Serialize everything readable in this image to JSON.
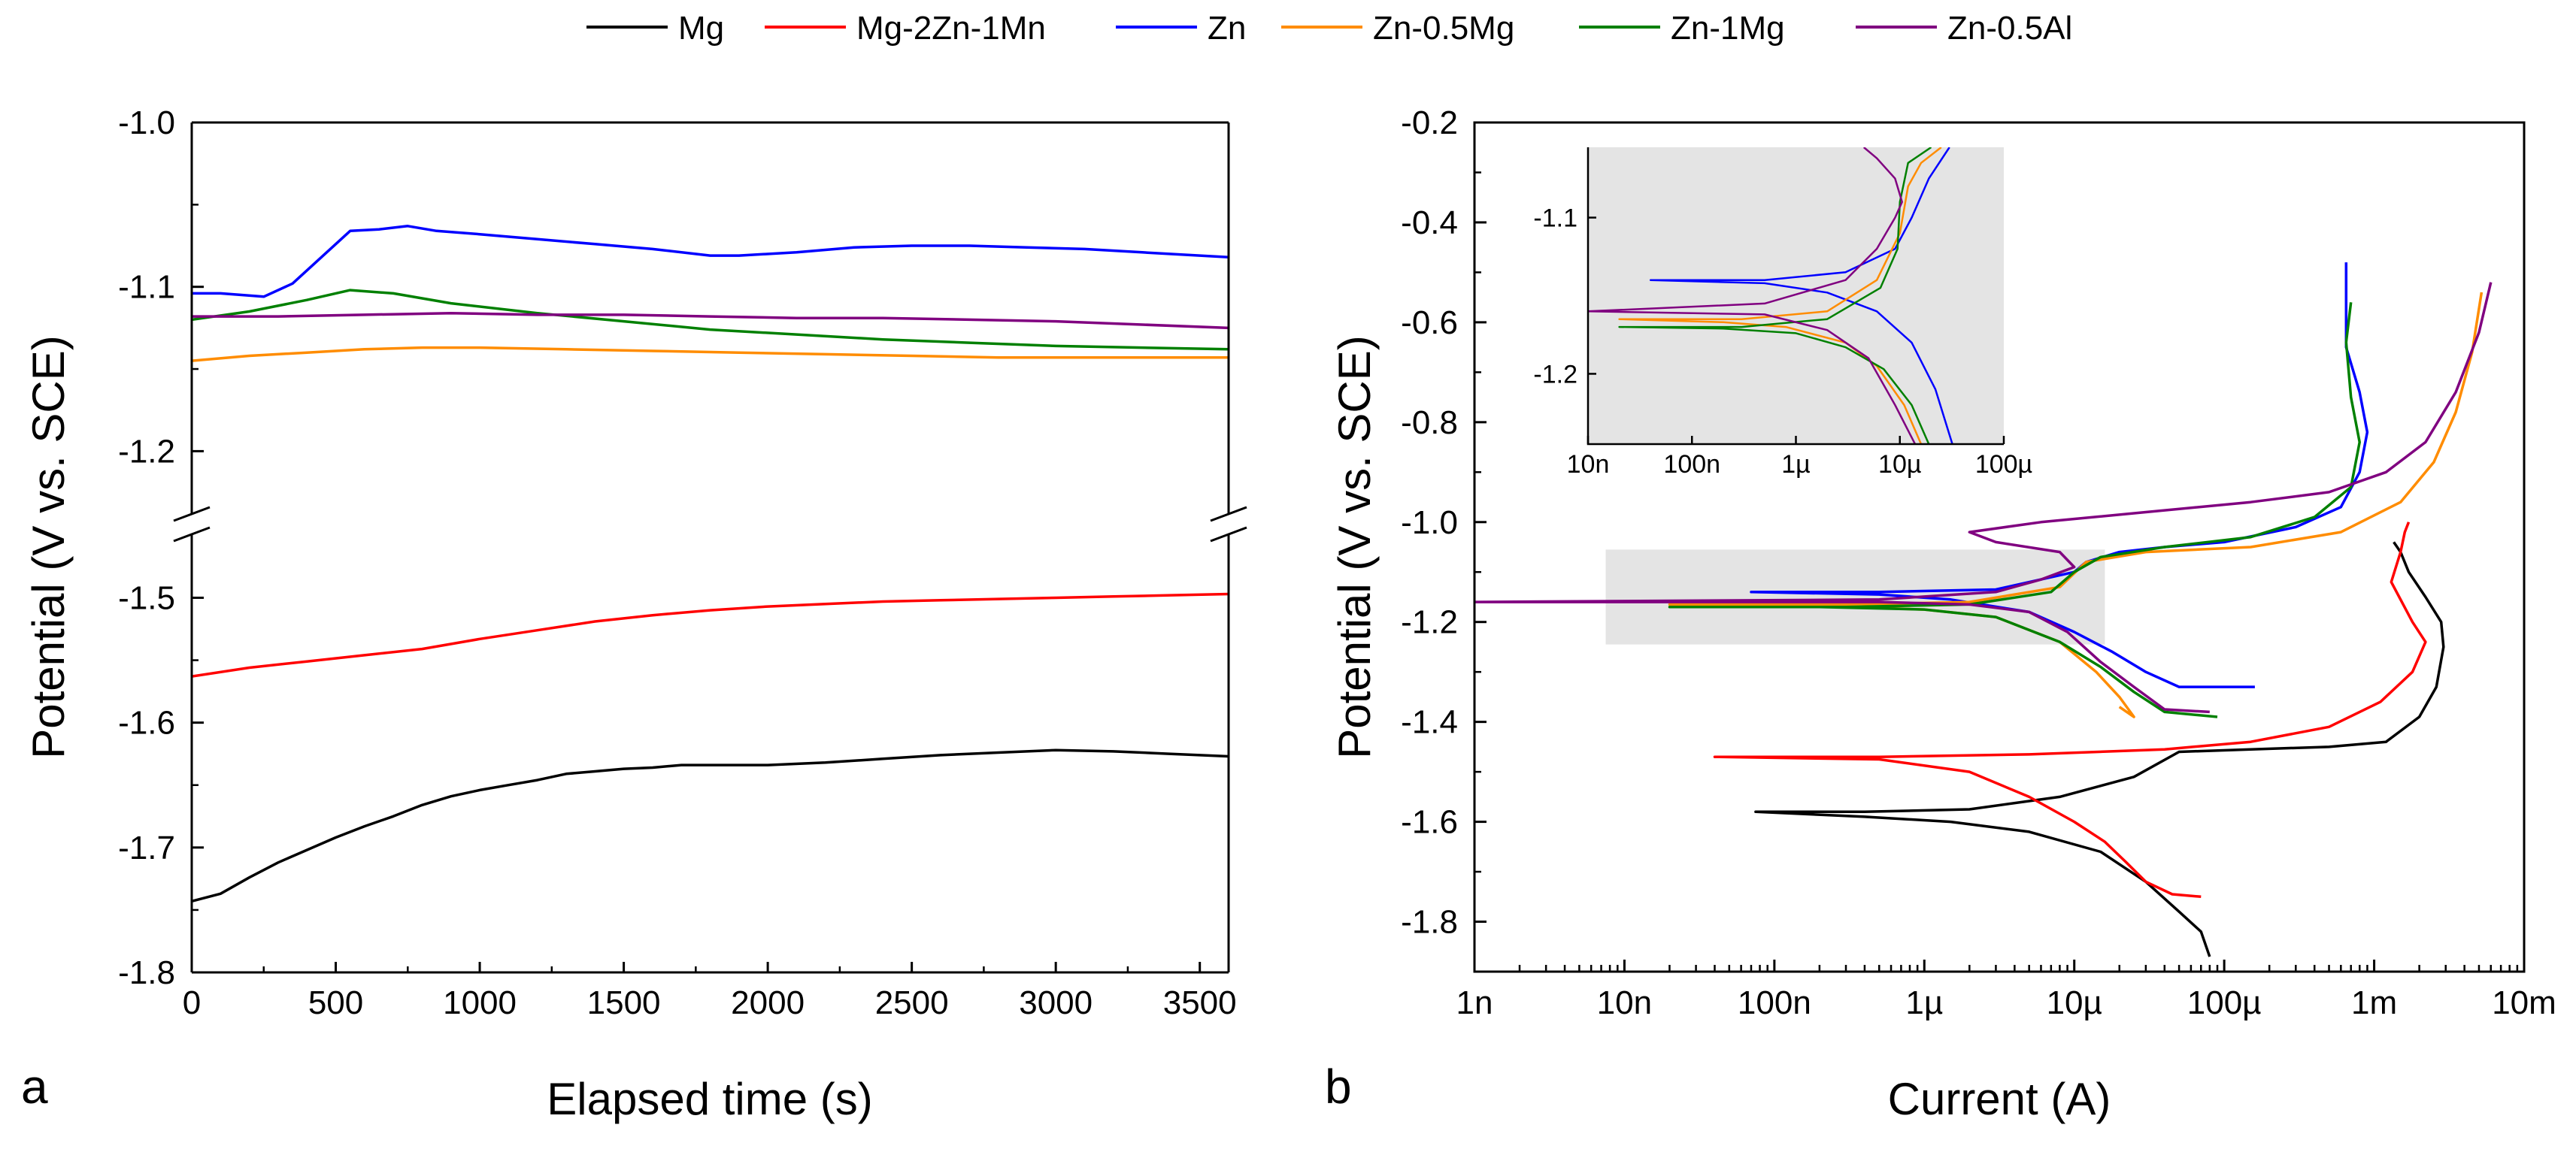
{
  "legend": [
    {
      "name": "Mg",
      "color": "#000000"
    },
    {
      "name": "Mg-2Zn-1Mn",
      "color": "#ff0000"
    },
    {
      "name": "Zn",
      "color": "#0000ff"
    },
    {
      "name": "Zn-0.5Mg",
      "color": "#ff8c00"
    },
    {
      "name": "Zn-1Mg",
      "color": "#008000"
    },
    {
      "name": "Zn-0.5Al",
      "color": "#800080"
    }
  ],
  "chart_data": [
    {
      "type": "line",
      "panel_label": "a",
      "xlabel": "Elapsed time (s)",
      "ylabel": "Potential (V vs. SCE)",
      "xlim": [
        0,
        3600
      ],
      "xticks": [
        0,
        500,
        1000,
        1500,
        2000,
        2500,
        3000,
        3500
      ],
      "xtick_labels": [
        "0",
        "500",
        "1000",
        "1500",
        "2000",
        "2500",
        "3000",
        "3500"
      ],
      "ylim_upper": [
        -1.23,
        -1.0
      ],
      "ylim_lower": [
        -1.8,
        -1.46
      ],
      "yticks_upper": [
        -1.0,
        -1.1,
        -1.2
      ],
      "ytick_labels_upper": [
        "-1.0",
        "-1.1",
        "-1.2"
      ],
      "yticks_lower": [
        -1.5,
        -1.6,
        -1.7,
        -1.8
      ],
      "ytick_labels_lower": [
        "-1.5",
        "-1.6",
        "-1.7",
        "-1.8"
      ],
      "axis_break": true,
      "series": [
        {
          "name": "Zn",
          "color": "#0000ff",
          "x": [
            0,
            100,
            250,
            350,
            450,
            550,
            650,
            750,
            850,
            1000,
            1200,
            1400,
            1600,
            1800,
            1900,
            2100,
            2300,
            2500,
            2700,
            2900,
            3100,
            3300,
            3600
          ],
          "y": [
            -1.104,
            -1.104,
            -1.106,
            -1.098,
            -1.082,
            -1.066,
            -1.065,
            -1.063,
            -1.066,
            -1.068,
            -1.071,
            -1.074,
            -1.077,
            -1.081,
            -1.081,
            -1.079,
            -1.076,
            -1.075,
            -1.075,
            -1.076,
            -1.077,
            -1.079,
            -1.082
          ]
        },
        {
          "name": "Zn-1Mg",
          "color": "#008000",
          "x": [
            0,
            200,
            400,
            550,
            700,
            900,
            1200,
            1500,
            1800,
            2100,
            2400,
            2700,
            3000,
            3300,
            3600
          ],
          "y": [
            -1.12,
            -1.115,
            -1.108,
            -1.102,
            -1.104,
            -1.11,
            -1.116,
            -1.121,
            -1.126,
            -1.129,
            -1.132,
            -1.134,
            -1.136,
            -1.137,
            -1.138
          ]
        },
        {
          "name": "Zn-0.5Al",
          "color": "#800080",
          "x": [
            0,
            300,
            600,
            900,
            1200,
            1500,
            1800,
            2100,
            2400,
            2700,
            3000,
            3300,
            3600
          ],
          "y": [
            -1.118,
            -1.118,
            -1.117,
            -1.116,
            -1.117,
            -1.117,
            -1.118,
            -1.119,
            -1.119,
            -1.12,
            -1.121,
            -1.123,
            -1.125
          ]
        },
        {
          "name": "Zn-0.5Mg",
          "color": "#ff8c00",
          "x": [
            0,
            200,
            400,
            600,
            800,
            1000,
            1300,
            1600,
            1900,
            2200,
            2500,
            2800,
            3100,
            3400,
            3600
          ],
          "y": [
            -1.145,
            -1.142,
            -1.14,
            -1.138,
            -1.137,
            -1.137,
            -1.138,
            -1.139,
            -1.14,
            -1.141,
            -1.142,
            -1.143,
            -1.143,
            -1.143,
            -1.143
          ]
        },
        {
          "name": "Mg-2Zn-1Mn",
          "color": "#ff0000",
          "x": [
            0,
            200,
            400,
            600,
            800,
            1000,
            1200,
            1400,
            1600,
            1800,
            2000,
            2200,
            2400,
            2600,
            2800,
            3000,
            3200,
            3400,
            3600
          ],
          "y": [
            -1.563,
            -1.556,
            -1.551,
            -1.546,
            -1.541,
            -1.533,
            -1.526,
            -1.519,
            -1.514,
            -1.51,
            -1.507,
            -1.505,
            -1.503,
            -1.502,
            -1.501,
            -1.5,
            -1.499,
            -1.498,
            -1.497
          ]
        },
        {
          "name": "Mg",
          "color": "#000000",
          "x": [
            0,
            100,
            200,
            300,
            400,
            500,
            600,
            700,
            800,
            900,
            1000,
            1100,
            1200,
            1300,
            1400,
            1500,
            1600,
            1700,
            1800,
            2000,
            2200,
            2400,
            2600,
            2800,
            3000,
            3200,
            3400,
            3600
          ],
          "y": [
            -1.743,
            -1.737,
            -1.724,
            -1.712,
            -1.702,
            -1.692,
            -1.683,
            -1.675,
            -1.666,
            -1.659,
            -1.654,
            -1.65,
            -1.646,
            -1.641,
            -1.639,
            -1.637,
            -1.636,
            -1.634,
            -1.634,
            -1.634,
            -1.632,
            -1.629,
            -1.626,
            -1.624,
            -1.622,
            -1.623,
            -1.625,
            -1.627
          ]
        }
      ]
    },
    {
      "type": "line",
      "panel_label": "b",
      "xlabel": "Current (A)",
      "ylabel": "Potential (V vs. SCE)",
      "xscale": "log",
      "xlim": [
        1e-09,
        0.01
      ],
      "xticks": [
        1e-09,
        1e-08,
        1e-07,
        1e-06,
        1e-05,
        0.0001,
        0.001,
        0.01
      ],
      "xtick_labels": [
        "1n",
        "10n",
        "100n",
        "1µ",
        "10µ",
        "100µ",
        "1m",
        "10m"
      ],
      "ylim": [
        -1.9,
        -0.2
      ],
      "yticks": [
        -0.2,
        -0.4,
        -0.6,
        -0.8,
        -1.0,
        -1.2,
        -1.4,
        -1.6,
        -1.8
      ],
      "ytick_labels": [
        "-0.2",
        "-0.4",
        "-0.6",
        "-0.8",
        "-1.0",
        "-1.2",
        "-1.4",
        "-1.6",
        "-1.8"
      ],
      "highlight_region": {
        "x": [
          7.5e-09,
          1.6e-05
        ],
        "y": [
          -1.245,
          -1.055
        ]
      },
      "series": [
        {
          "name": "Mg",
          "color": "#000000",
          "x": [
            8e-05,
            7e-05,
            5e-05,
            3e-05,
            1.5e-05,
            5e-06,
            1.5e-06,
            4e-07,
            7.5e-08,
            4e-07,
            2e-06,
            8e-06,
            2.5e-05,
            5e-05,
            0.00015,
            0.0005,
            0.0012,
            0.002,
            0.0026,
            0.0029,
            0.0028,
            0.0022,
            0.0017,
            0.0015,
            0.00135
          ],
          "y": [
            -1.87,
            -1.82,
            -1.78,
            -1.72,
            -1.66,
            -1.62,
            -1.6,
            -1.59,
            -1.58,
            -1.58,
            -1.575,
            -1.55,
            -1.51,
            -1.46,
            -1.455,
            -1.45,
            -1.44,
            -1.39,
            -1.33,
            -1.25,
            -1.2,
            -1.15,
            -1.1,
            -1.06,
            -1.04
          ]
        },
        {
          "name": "Mg-2Zn-1Mn",
          "color": "#ff0000",
          "x": [
            7e-05,
            4.5e-05,
            3e-05,
            2.2e-05,
            1.6e-05,
            1e-05,
            5e-06,
            2e-06,
            5e-07,
            4e-08,
            5e-07,
            5e-06,
            4e-05,
            0.00015,
            0.0005,
            0.0011,
            0.0018,
            0.0022,
            0.0018,
            0.0013,
            0.0015,
            0.0016,
            0.0017
          ],
          "y": [
            -1.75,
            -1.745,
            -1.72,
            -1.68,
            -1.64,
            -1.6,
            -1.55,
            -1.5,
            -1.475,
            -1.47,
            -1.47,
            -1.465,
            -1.455,
            -1.44,
            -1.41,
            -1.36,
            -1.3,
            -1.24,
            -1.2,
            -1.12,
            -1.06,
            -1.02,
            -1.0
          ]
        },
        {
          "name": "Zn",
          "color": "#0000ff",
          "x": [
            0.00016,
            5e-05,
            3e-05,
            1.8e-05,
            1e-05,
            5e-06,
            1.5e-06,
            5e-07,
            7e-08,
            5e-07,
            3e-06,
            1e-05,
            1.2e-05,
            2e-05,
            4e-05,
            0.0001,
            0.0003,
            0.0006,
            0.0008,
            0.0009,
            0.0008,
            0.00065,
            0.00065
          ],
          "y": [
            -1.33,
            -1.33,
            -1.3,
            -1.26,
            -1.22,
            -1.18,
            -1.155,
            -1.145,
            -1.14,
            -1.14,
            -1.135,
            -1.1,
            -1.08,
            -1.06,
            -1.05,
            -1.04,
            -1.01,
            -0.97,
            -0.9,
            -0.82,
            -0.74,
            -0.65,
            -0.48
          ]
        },
        {
          "name": "Zn-0.5Mg",
          "color": "#ff8c00",
          "x": [
            2e-05,
            2.5e-05,
            2e-05,
            1.4e-05,
            8e-06,
            3e-06,
            1e-06,
            2e-07,
            2e-08,
            3e-07,
            2e-06,
            8e-06,
            1.2e-05,
            3e-05,
            0.00015,
            0.0006,
            0.0015,
            0.0025,
            0.0035,
            0.0045,
            0.0052
          ],
          "y": [
            -1.37,
            -1.39,
            -1.35,
            -1.3,
            -1.24,
            -1.19,
            -1.175,
            -1.168,
            -1.165,
            -1.165,
            -1.16,
            -1.13,
            -1.08,
            -1.06,
            -1.05,
            -1.02,
            -0.96,
            -0.88,
            -0.78,
            -0.66,
            -0.54
          ]
        },
        {
          "name": "Zn-1Mg",
          "color": "#008000",
          "x": [
            9e-05,
            4e-05,
            2.5e-05,
            1.5e-05,
            8e-06,
            3e-06,
            1e-06,
            2e-07,
            2e-08,
            3e-07,
            2e-06,
            7e-06,
            1e-05,
            1.5e-05,
            4e-05,
            0.00015,
            0.0004,
            0.0007,
            0.0008,
            0.0007,
            0.00065,
            0.0007
          ],
          "y": [
            -1.39,
            -1.38,
            -1.34,
            -1.29,
            -1.24,
            -1.19,
            -1.175,
            -1.17,
            -1.17,
            -1.17,
            -1.165,
            -1.14,
            -1.1,
            -1.07,
            -1.05,
            -1.03,
            -0.99,
            -0.93,
            -0.84,
            -0.75,
            -0.64,
            -0.56
          ]
        },
        {
          "name": "Zn-0.5Al",
          "color": "#800080",
          "x": [
            8e-05,
            4e-05,
            2.5e-05,
            1.5e-05,
            9e-06,
            5e-06,
            2e-06,
            5e-07,
            1e-09,
            5e-07,
            3e-06,
            6e-06,
            1e-05,
            8e-06,
            3e-06,
            2e-06,
            6e-06,
            3e-05,
            0.00015,
            0.0005,
            0.0012,
            0.0022,
            0.0035,
            0.005,
            0.006
          ],
          "y": [
            -1.38,
            -1.375,
            -1.33,
            -1.28,
            -1.22,
            -1.18,
            -1.165,
            -1.16,
            -1.16,
            -1.155,
            -1.14,
            -1.115,
            -1.09,
            -1.06,
            -1.04,
            -1.02,
            -1.0,
            -0.98,
            -0.96,
            -0.94,
            -0.9,
            -0.84,
            -0.74,
            -0.62,
            -0.52
          ]
        }
      ],
      "inset": {
        "xscale": "log",
        "xlim": [
          1e-08,
          0.0001
        ],
        "ylim": [
          -1.245,
          -1.055
        ],
        "xticks": [
          1e-08,
          1e-07,
          1e-06,
          1e-05,
          0.0001
        ],
        "xtick_labels": [
          "10n",
          "100n",
          "1µ",
          "10µ",
          "100µ"
        ],
        "yticks": [
          -1.1,
          -1.2
        ],
        "ytick_labels": [
          "-1.1",
          "-1.2"
        ],
        "series": [
          {
            "name": "Zn",
            "color": "#0000ff",
            "x": [
              3.2e-05,
              2.2e-05,
              1.3e-05,
              6e-06,
              2e-06,
              5e-07,
              4e-08,
              5e-07,
              3e-06,
              9e-06,
              1.3e-05,
              1.9e-05,
              3e-05
            ],
            "y": [
              -1.245,
              -1.21,
              -1.18,
              -1.16,
              -1.148,
              -1.142,
              -1.14,
              -1.14,
              -1.135,
              -1.12,
              -1.1,
              -1.075,
              -1.055
            ]
          },
          {
            "name": "Zn-0.5Mg",
            "color": "#ff8c00",
            "x": [
              1.6e-05,
              1.1e-05,
              6e-06,
              3e-06,
              8e-07,
              2e-07,
              2e-08,
              3e-07,
              2e-06,
              6e-06,
              1e-05,
              1.2e-05,
              1.6e-05,
              2.5e-05
            ],
            "y": [
              -1.245,
              -1.22,
              -1.195,
              -1.18,
              -1.17,
              -1.167,
              -1.165,
              -1.165,
              -1.16,
              -1.14,
              -1.11,
              -1.08,
              -1.065,
              -1.055
            ]
          },
          {
            "name": "Zn-1Mg",
            "color": "#008000",
            "x": [
              1.9e-05,
              1.3e-05,
              7e-06,
              3e-06,
              1e-06,
              2e-07,
              2e-08,
              3e-07,
              2e-06,
              6.5e-06,
              9.5e-06,
              1e-05,
              1.2e-05,
              2e-05
            ],
            "y": [
              -1.245,
              -1.22,
              -1.197,
              -1.183,
              -1.174,
              -1.171,
              -1.17,
              -1.17,
              -1.165,
              -1.145,
              -1.12,
              -1.09,
              -1.065,
              -1.055
            ]
          },
          {
            "name": "Zn-0.5Al",
            "color": "#800080",
            "x": [
              1.4e-05,
              9e-06,
              5e-06,
              2e-06,
              5e-07,
              1e-08,
              5e-07,
              3e-06,
              6e-06,
              9e-06,
              1.05e-05,
              9e-06,
              6e-06,
              4.5e-06
            ],
            "y": [
              -1.245,
              -1.22,
              -1.19,
              -1.172,
              -1.162,
              -1.16,
              -1.155,
              -1.14,
              -1.12,
              -1.1,
              -1.09,
              -1.075,
              -1.062,
              -1.055
            ]
          }
        ]
      }
    }
  ]
}
